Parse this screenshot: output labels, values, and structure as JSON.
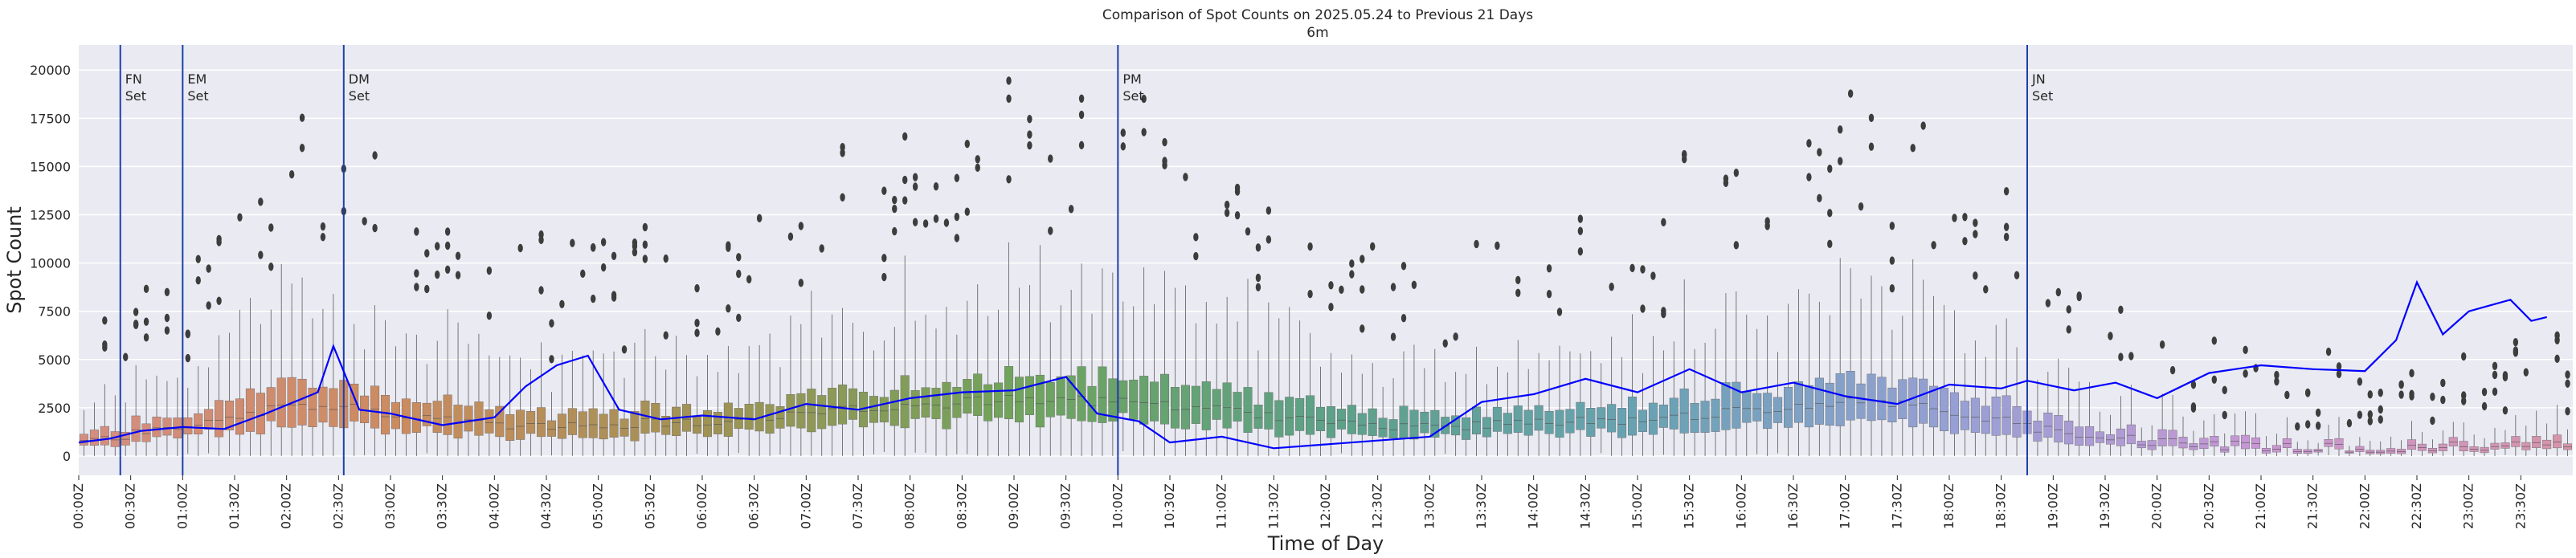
{
  "chart_data": {
    "type": "box",
    "title": "Comparison of Spot Counts on 2025.05.24 to Previous 21 Days",
    "subtitle": "6m",
    "xlabel": "Time of Day",
    "ylabel": "Spot Count",
    "ylim": [
      -1000,
      21300
    ],
    "yticks": [
      0,
      2500,
      5000,
      7500,
      10000,
      12500,
      15000,
      17500,
      20000
    ],
    "ytick_labels": [
      "0",
      "2500",
      "5000",
      "7500",
      "10000",
      "12500",
      "15000",
      "17500",
      "20000"
    ],
    "bins_per_day": 240,
    "bin_minutes": 6,
    "xtick_labels": [
      "00:00Z",
      "00:30Z",
      "01:00Z",
      "01:30Z",
      "02:00Z",
      "02:30Z",
      "03:00Z",
      "03:30Z",
      "04:00Z",
      "04:30Z",
      "05:00Z",
      "05:30Z",
      "06:00Z",
      "06:30Z",
      "07:00Z",
      "07:30Z",
      "08:00Z",
      "08:30Z",
      "09:00Z",
      "09:30Z",
      "10:00Z",
      "10:30Z",
      "11:00Z",
      "11:30Z",
      "12:00Z",
      "12:30Z",
      "13:00Z",
      "13:30Z",
      "14:00Z",
      "14:30Z",
      "15:00Z",
      "15:30Z",
      "16:00Z",
      "16:30Z",
      "17:00Z",
      "17:30Z",
      "18:00Z",
      "18:30Z",
      "19:00Z",
      "19:30Z",
      "20:00Z",
      "20:30Z",
      "21:00Z",
      "21:30Z",
      "22:00Z",
      "22:30Z",
      "23:00Z",
      "23:30Z"
    ],
    "grid": true,
    "background": "#eaeaf2",
    "line_color": "#0000ff",
    "vline_color": "#1f3fa8",
    "vlines": [
      {
        "hour": 0.4,
        "label1": "FN",
        "label2": "Set"
      },
      {
        "hour": 1.0,
        "label1": "EM",
        "label2": "Set"
      },
      {
        "hour": 2.55,
        "label1": "DM",
        "label2": "Set"
      },
      {
        "hour": 10.0,
        "label1": "PM",
        "label2": "Set"
      },
      {
        "hour": 18.75,
        "label1": "JN",
        "label2": "Set"
      }
    ],
    "median_profile": [
      {
        "hour": 0.0,
        "value": 700
      },
      {
        "hour": 0.5,
        "value": 1100
      },
      {
        "hour": 1.0,
        "value": 1500
      },
      {
        "hour": 1.5,
        "value": 2000
      },
      {
        "hour": 2.0,
        "value": 2600
      },
      {
        "hour": 2.5,
        "value": 2600
      },
      {
        "hour": 3.0,
        "value": 2200
      },
      {
        "hour": 4.0,
        "value": 1500
      },
      {
        "hour": 5.0,
        "value": 1600
      },
      {
        "hour": 6.0,
        "value": 1800
      },
      {
        "hour": 7.0,
        "value": 2200
      },
      {
        "hour": 8.0,
        "value": 2600
      },
      {
        "hour": 9.0,
        "value": 3000
      },
      {
        "hour": 10.0,
        "value": 2800
      },
      {
        "hour": 11.0,
        "value": 2400
      },
      {
        "hour": 12.0,
        "value": 1800
      },
      {
        "hour": 13.0,
        "value": 1500
      },
      {
        "hour": 14.0,
        "value": 1700
      },
      {
        "hour": 15.0,
        "value": 1900
      },
      {
        "hour": 16.0,
        "value": 2300
      },
      {
        "hour": 17.0,
        "value": 2900
      },
      {
        "hour": 18.0,
        "value": 2400
      },
      {
        "hour": 19.0,
        "value": 1300
      },
      {
        "hour": 20.0,
        "value": 700
      },
      {
        "hour": 21.0,
        "value": 500
      },
      {
        "hour": 22.0,
        "value": 400
      },
      {
        "hour": 23.0,
        "value": 500
      },
      {
        "hour": 24.0,
        "value": 600
      }
    ],
    "series": [
      {
        "name": "2025.05.24",
        "values_by_hour": [
          {
            "hour": 0.0,
            "value": 700
          },
          {
            "hour": 0.3,
            "value": 900
          },
          {
            "hour": 0.6,
            "value": 1300
          },
          {
            "hour": 1.0,
            "value": 1500
          },
          {
            "hour": 1.4,
            "value": 1400
          },
          {
            "hour": 1.8,
            "value": 2200
          },
          {
            "hour": 2.3,
            "value": 3300
          },
          {
            "hour": 2.45,
            "value": 5700
          },
          {
            "hour": 2.7,
            "value": 2400
          },
          {
            "hour": 3.0,
            "value": 2200
          },
          {
            "hour": 3.5,
            "value": 1600
          },
          {
            "hour": 4.0,
            "value": 2000
          },
          {
            "hour": 4.3,
            "value": 3600
          },
          {
            "hour": 4.6,
            "value": 4700
          },
          {
            "hour": 4.9,
            "value": 5200
          },
          {
            "hour": 5.2,
            "value": 2400
          },
          {
            "hour": 5.6,
            "value": 1900
          },
          {
            "hour": 6.0,
            "value": 2100
          },
          {
            "hour": 6.5,
            "value": 1900
          },
          {
            "hour": 7.0,
            "value": 2700
          },
          {
            "hour": 7.5,
            "value": 2400
          },
          {
            "hour": 8.0,
            "value": 3000
          },
          {
            "hour": 8.5,
            "value": 3300
          },
          {
            "hour": 9.0,
            "value": 3400
          },
          {
            "hour": 9.5,
            "value": 4100
          },
          {
            "hour": 9.8,
            "value": 2200
          },
          {
            "hour": 10.2,
            "value": 1800
          },
          {
            "hour": 10.5,
            "value": 700
          },
          {
            "hour": 11.0,
            "value": 1000
          },
          {
            "hour": 11.5,
            "value": 400
          },
          {
            "hour": 12.0,
            "value": 600
          },
          {
            "hour": 12.5,
            "value": 800
          },
          {
            "hour": 13.0,
            "value": 1000
          },
          {
            "hour": 13.5,
            "value": 2800
          },
          {
            "hour": 14.0,
            "value": 3200
          },
          {
            "hour": 14.5,
            "value": 4000
          },
          {
            "hour": 15.0,
            "value": 3300
          },
          {
            "hour": 15.5,
            "value": 4500
          },
          {
            "hour": 16.0,
            "value": 3300
          },
          {
            "hour": 16.5,
            "value": 3800
          },
          {
            "hour": 17.0,
            "value": 3100
          },
          {
            "hour": 17.5,
            "value": 2700
          },
          {
            "hour": 18.0,
            "value": 3700
          },
          {
            "hour": 18.5,
            "value": 3500
          },
          {
            "hour": 18.75,
            "value": 3900
          },
          {
            "hour": 19.2,
            "value": 3400
          },
          {
            "hour": 19.6,
            "value": 3800
          },
          {
            "hour": 20.0,
            "value": 3000
          },
          {
            "hour": 20.5,
            "value": 4300
          },
          {
            "hour": 21.0,
            "value": 4700
          },
          {
            "hour": 21.5,
            "value": 4500
          },
          {
            "hour": 22.0,
            "value": 4400
          },
          {
            "hour": 22.3,
            "value": 6000
          },
          {
            "hour": 22.5,
            "value": 9000
          },
          {
            "hour": 22.75,
            "value": 6300
          },
          {
            "hour": 23.0,
            "value": 7500
          },
          {
            "hour": 23.4,
            "value": 8100
          },
          {
            "hour": 23.6,
            "value": 7000
          },
          {
            "hour": 23.75,
            "value": 7200
          }
        ]
      }
    ]
  }
}
